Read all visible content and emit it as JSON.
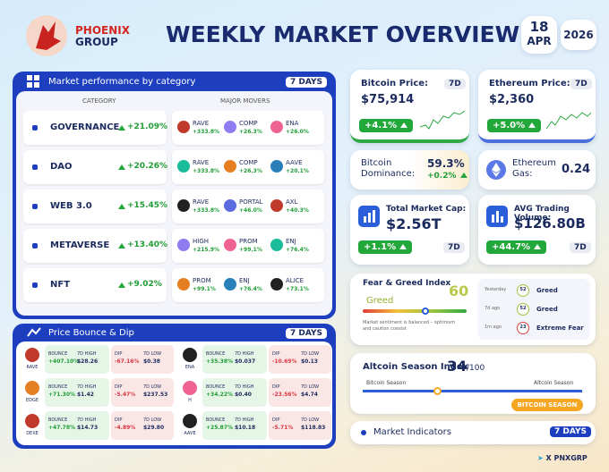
{
  "header": {
    "brand_line1": "PHOENIX",
    "brand_line2": "GROUP",
    "title": "WEEKLY MARKET OVERVIEW",
    "day": "18",
    "month": "APR",
    "year": "2026"
  },
  "category_panel": {
    "title": "Market performance by category",
    "period": "7 DAYS",
    "col_category": "CATEGORY",
    "col_movers": "MAJOR MOVERS",
    "rows": [
      {
        "name": "GOVERNANCE",
        "change": "+21.09%",
        "movers": [
          {
            "symbol": "RAVE",
            "change": "+333.8%"
          },
          {
            "symbol": "COMP",
            "change": "+26.3%"
          },
          {
            "symbol": "ENA",
            "change": "+26.0%"
          }
        ]
      },
      {
        "name": "DAO",
        "change": "+20.26%",
        "movers": [
          {
            "symbol": "RAVE",
            "change": "+333.8%"
          },
          {
            "symbol": "COMP",
            "change": "+26.3%"
          },
          {
            "symbol": "AAVE",
            "change": "+20.1%"
          }
        ]
      },
      {
        "name": "WEB 3.0",
        "change": "+15.45%",
        "movers": [
          {
            "symbol": "RAVE",
            "change": "+333.8%"
          },
          {
            "symbol": "PORTAL",
            "change": "+46.0%"
          },
          {
            "symbol": "AXL",
            "change": "+40.3%"
          }
        ]
      },
      {
        "name": "METAVERSE",
        "change": "+13.40%",
        "movers": [
          {
            "symbol": "HIGH",
            "change": "+215.9%"
          },
          {
            "symbol": "PROM",
            "change": "+99.1%"
          },
          {
            "symbol": "ENJ",
            "change": "+76.4%"
          }
        ]
      },
      {
        "name": "NFT",
        "change": "+9.02%",
        "movers": [
          {
            "symbol": "PROM",
            "change": "+99.1%"
          },
          {
            "symbol": "ENJ",
            "change": "+76.4%"
          },
          {
            "symbol": "ALICE",
            "change": "+73.1%"
          }
        ]
      }
    ]
  },
  "bounce_panel": {
    "title": "Price Bounce & Dip",
    "period": "7 DAYS",
    "labels": {
      "bounce": "BOUNCE",
      "high": "7D HIGH",
      "dip": "DIP",
      "low": "7D LOW"
    },
    "items": [
      {
        "token": "RAVE",
        "bounce": "+407.10%",
        "high": "$28.26",
        "dip": "-67.16%",
        "low": "$0.38"
      },
      {
        "token": "ENA",
        "bounce": "+35.38%",
        "high": "$0.037",
        "dip": "-10.69%",
        "low": "$0.13"
      },
      {
        "token": "EDGE",
        "bounce": "+71.30%",
        "high": "$1.42",
        "dip": "-5.47%",
        "low": "$237.53"
      },
      {
        "token": "H",
        "bounce": "+34.22%",
        "high": "$0.40",
        "dip": "-23.56%",
        "low": "$4.74"
      },
      {
        "token": "DEXE",
        "bounce": "+47.78%",
        "high": "$14.73",
        "dip": "-4.89%",
        "low": "$29.80"
      },
      {
        "token": "AAVE",
        "bounce": "+25.87%",
        "high": "$10.18",
        "dip": "-5.71%",
        "low": "$118.83"
      }
    ]
  },
  "bitcoin": {
    "label": "Bitcoin Price:",
    "period": "7D",
    "value": "$75,914",
    "change": "+4.1%"
  },
  "ethereum": {
    "label": "Ethereum Price:",
    "period": "7D",
    "value": "$2,360",
    "change": "+5.0%"
  },
  "btc_dominance": {
    "label": "Bitcoin Dominance:",
    "value": "59.3%",
    "change": "+0.2%"
  },
  "eth_gas": {
    "label": "Ethereum Gas:",
    "value": "0.24"
  },
  "market_cap": {
    "label": "Total Market Cap:",
    "value": "$2.56T",
    "change": "+1.1%",
    "period": "7D"
  },
  "volume": {
    "label": "AVG Trading Volume:",
    "value": "$126.80B",
    "change": "+44.7%",
    "period": "7D"
  },
  "fear_greed": {
    "title": "Fear & Greed Index",
    "value": 60,
    "status": "Greed",
    "note": "Market sentiment is balanced – optimism and caution coexist",
    "history": [
      {
        "when": "Yesterday",
        "value": 52,
        "status": "Greed"
      },
      {
        "when": "7d ago",
        "value": 52,
        "status": "Greed"
      },
      {
        "when": "1m ago",
        "value": 23,
        "status": "Extreme Fear"
      }
    ]
  },
  "altcoin_season": {
    "title": "Altcoin Season Index",
    "value": 34,
    "max": "/100",
    "left_label": "Bitcoin Season",
    "right_label": "Altcoin Season",
    "badge": "BITCOIN SEASON"
  },
  "footer": {
    "indicators": "Market Indicators",
    "period": "7 DAYS",
    "x": "X",
    "handle": "PNXGRP"
  }
}
